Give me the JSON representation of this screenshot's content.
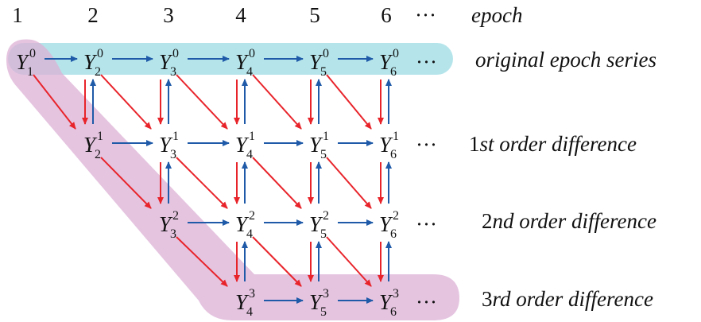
{
  "columns": [
    "1",
    "2",
    "3",
    "4",
    "5",
    "6"
  ],
  "ellipsis": "···",
  "labels": {
    "epoch": "epoch",
    "row0": "original epoch series",
    "row1_prefix": "1",
    "row1_rest": "st order difference",
    "row2_prefix": "2",
    "row2_rest": "nd order difference",
    "row3_prefix": "3",
    "row3_rest": "rd order difference"
  },
  "symbol": "Y",
  "rows": [
    {
      "order": "0",
      "subs": [
        "1",
        "2",
        "3",
        "4",
        "5",
        "6"
      ]
    },
    {
      "order": "1",
      "subs": [
        "2",
        "3",
        "4",
        "5",
        "6"
      ]
    },
    {
      "order": "2",
      "subs": [
        "3",
        "4",
        "5",
        "6"
      ]
    },
    {
      "order": "3",
      "subs": [
        "4",
        "5",
        "6"
      ]
    }
  ],
  "colors": {
    "highlight_row": "#a8e0e8",
    "highlight_diag": "#dcb0d6",
    "arrow_red": "#e8242b",
    "arrow_blue": "#1f5aa8"
  }
}
